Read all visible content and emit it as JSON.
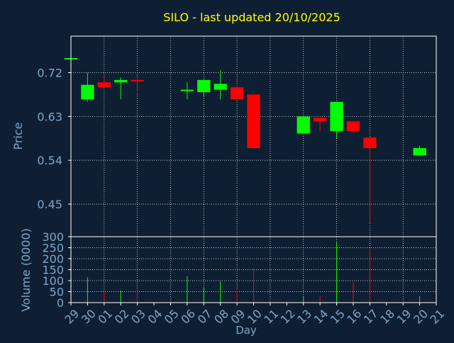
{
  "chart_data": {
    "type": "candlestick",
    "title": "SILO - last updated 20/10/2025",
    "colors": {
      "background": "#0f1f33",
      "title": "#ffff00",
      "axis_text": "#7fa6c8",
      "frame": "#ffffff",
      "grid": "#ffffff",
      "up": "#00ff00",
      "down": "#ff0000"
    },
    "grid": true,
    "x_tick_labels": [
      "29",
      "30",
      "01",
      "02",
      "03",
      "04",
      "05",
      "06",
      "07",
      "08",
      "09",
      "10",
      "11",
      "12",
      "13",
      "14",
      "15",
      "16",
      "17",
      "18",
      "19",
      "20",
      "21"
    ],
    "xlabel": "Day",
    "price_panel": {
      "ylabel": "Price",
      "ylim": [
        0.383,
        0.795
      ],
      "yticks": [
        0.45,
        0.54,
        0.63,
        0.72
      ],
      "ytick_labels": [
        "0.45",
        "0.54",
        "0.63",
        "0.72"
      ],
      "candles": [
        {
          "x": 0,
          "open": 0.75,
          "close": 0.75,
          "high": 0.75,
          "low": 0.75,
          "dir": "up"
        },
        {
          "x": 1,
          "open": 0.665,
          "close": 0.695,
          "high": 0.72,
          "low": 0.66,
          "dir": "up"
        },
        {
          "x": 2,
          "open": 0.7,
          "close": 0.69,
          "high": 0.71,
          "low": 0.69,
          "dir": "down"
        },
        {
          "x": 3,
          "open": 0.7,
          "close": 0.705,
          "high": 0.71,
          "low": 0.665,
          "dir": "up"
        },
        {
          "x": 4,
          "open": 0.705,
          "close": 0.705,
          "high": 0.715,
          "low": 0.68,
          "dir": "down"
        },
        {
          "x": 7,
          "open": 0.685,
          "close": 0.685,
          "high": 0.7,
          "low": 0.665,
          "dir": "up"
        },
        {
          "x": 8,
          "open": 0.68,
          "close": 0.705,
          "high": 0.705,
          "low": 0.67,
          "dir": "up"
        },
        {
          "x": 9,
          "open": 0.685,
          "close": 0.697,
          "high": 0.725,
          "low": 0.665,
          "dir": "up"
        },
        {
          "x": 10,
          "open": 0.69,
          "close": 0.665,
          "high": 0.695,
          "low": 0.665,
          "dir": "down"
        },
        {
          "x": 11,
          "open": 0.675,
          "close": 0.565,
          "high": 0.675,
          "low": 0.565,
          "dir": "down"
        },
        {
          "x": 14,
          "open": 0.595,
          "close": 0.63,
          "high": 0.63,
          "low": 0.595,
          "dir": "up"
        },
        {
          "x": 15,
          "open": 0.627,
          "close": 0.62,
          "high": 0.627,
          "low": 0.6,
          "dir": "down"
        },
        {
          "x": 16,
          "open": 0.6,
          "close": 0.66,
          "high": 0.66,
          "low": 0.585,
          "dir": "up"
        },
        {
          "x": 17,
          "open": 0.62,
          "close": 0.6,
          "high": 0.62,
          "low": 0.595,
          "dir": "down"
        },
        {
          "x": 18,
          "open": 0.587,
          "close": 0.565,
          "high": 0.587,
          "low": 0.41,
          "dir": "down"
        },
        {
          "x": 21,
          "open": 0.55,
          "close": 0.565,
          "high": 0.57,
          "low": 0.55,
          "dir": "up"
        }
      ]
    },
    "volume_panel": {
      "ylabel": "Volume (0000)",
      "ylim": [
        0,
        300
      ],
      "yticks": [
        0,
        50,
        100,
        150,
        200,
        250,
        300
      ],
      "ytick_labels": [
        "0",
        "50",
        "100",
        "150",
        "200",
        "250",
        "300"
      ],
      "bars": [
        {
          "x": 1,
          "value": 115,
          "dir": "up"
        },
        {
          "x": 2,
          "value": 50,
          "dir": "down"
        },
        {
          "x": 3,
          "value": 55,
          "dir": "up"
        },
        {
          "x": 4,
          "value": 50,
          "dir": "down"
        },
        {
          "x": 7,
          "value": 120,
          "dir": "up"
        },
        {
          "x": 8,
          "value": 70,
          "dir": "up"
        },
        {
          "x": 9,
          "value": 95,
          "dir": "up"
        },
        {
          "x": 10,
          "value": 60,
          "dir": "down"
        },
        {
          "x": 11,
          "value": 155,
          "dir": "down"
        },
        {
          "x": 14,
          "value": 30,
          "dir": "up"
        },
        {
          "x": 15,
          "value": 30,
          "dir": "down"
        },
        {
          "x": 16,
          "value": 275,
          "dir": "up"
        },
        {
          "x": 17,
          "value": 95,
          "dir": "down"
        },
        {
          "x": 18,
          "value": 245,
          "dir": "down"
        },
        {
          "x": 21,
          "value": 30,
          "dir": "up"
        }
      ]
    }
  }
}
